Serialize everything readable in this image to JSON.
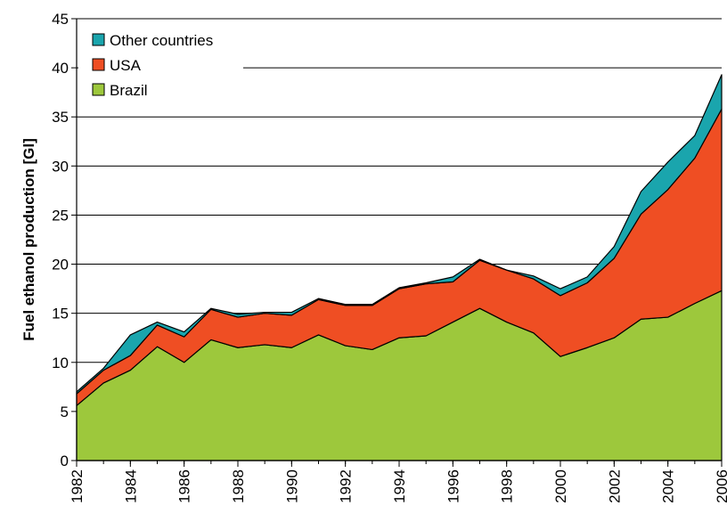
{
  "chart_data": {
    "type": "stacked_area",
    "y_label": "Fuel ethanol production [Gl]",
    "x": [
      1982,
      1983,
      1984,
      1985,
      1986,
      1987,
      1988,
      1989,
      1990,
      1991,
      1992,
      1993,
      1994,
      1995,
      1996,
      1997,
      1998,
      1999,
      2000,
      2001,
      2002,
      2003,
      2004,
      2005,
      2006
    ],
    "xlim": [
      1982,
      2006
    ],
    "xticks": [
      1982,
      1984,
      1986,
      1988,
      1990,
      1992,
      1994,
      1996,
      1998,
      2000,
      2002,
      2004,
      2006
    ],
    "ylim": [
      0,
      45
    ],
    "yticks": [
      0,
      5,
      10,
      15,
      20,
      25,
      30,
      35,
      40,
      45
    ],
    "grid": true,
    "legend": "upper left",
    "series": [
      {
        "name": "Brazil",
        "color": "#9dc83c",
        "values": [
          5.6,
          7.9,
          9.2,
          11.6,
          10.0,
          12.3,
          11.5,
          11.8,
          11.5,
          12.8,
          11.7,
          11.3,
          12.5,
          12.7,
          14.1,
          15.5,
          14.1,
          13.0,
          10.6,
          11.5,
          12.5,
          14.4,
          14.6,
          16.0,
          17.3
        ]
      },
      {
        "name": "USA",
        "color": "#ef4e23",
        "values": [
          1.2,
          1.3,
          1.5,
          2.2,
          2.6,
          3.1,
          3.1,
          3.2,
          3.3,
          3.6,
          4.1,
          4.5,
          5.0,
          5.3,
          4.1,
          4.9,
          5.3,
          5.5,
          6.2,
          6.6,
          8.1,
          10.7,
          13.0,
          14.8,
          18.5
        ]
      },
      {
        "name": "Other countries",
        "color": "#1aa5ad",
        "values": [
          0.2,
          0.2,
          2.1,
          0.3,
          0.5,
          0.1,
          0.3,
          0.1,
          0.3,
          0.1,
          0.1,
          0.1,
          0.1,
          0.1,
          0.5,
          0.1,
          0.0,
          0.3,
          0.7,
          0.6,
          1.2,
          2.3,
          2.8,
          2.3,
          3.5
        ]
      }
    ]
  }
}
